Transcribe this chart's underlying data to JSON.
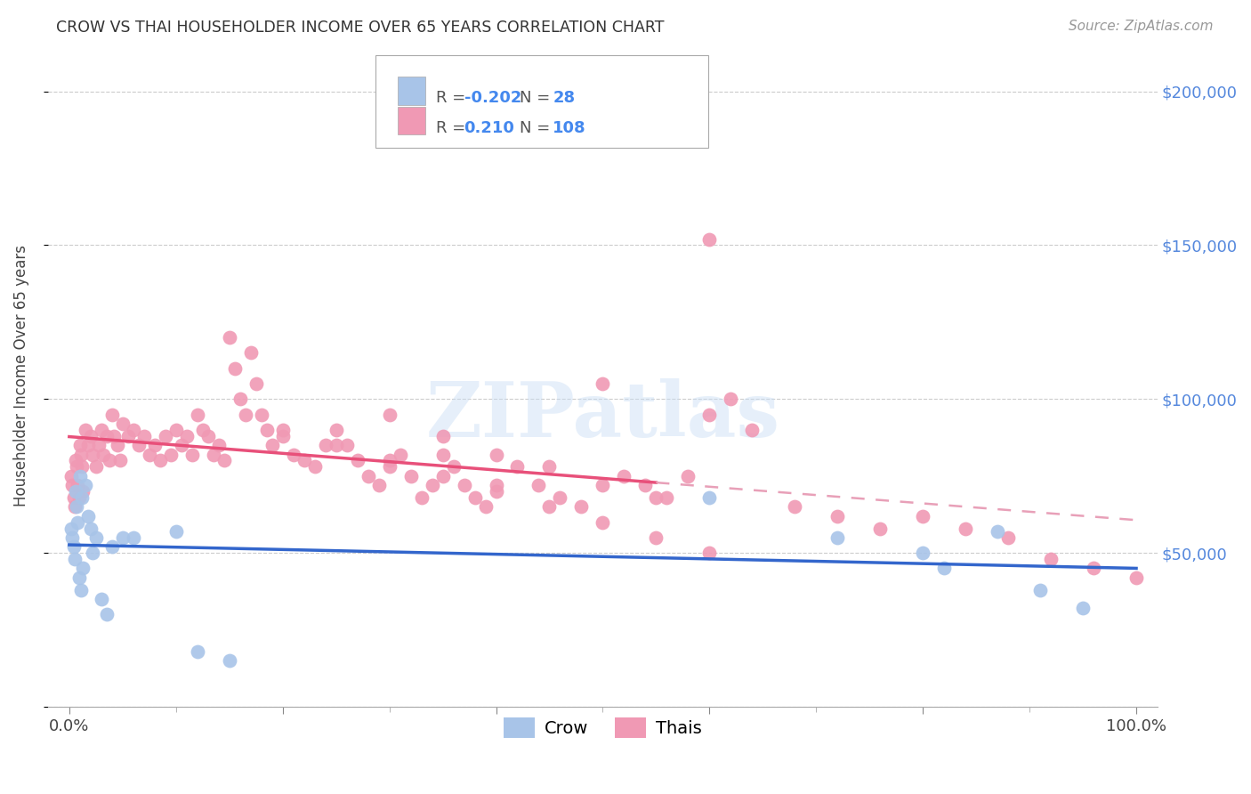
{
  "title": "CROW VS THAI HOUSEHOLDER INCOME OVER 65 YEARS CORRELATION CHART",
  "source": "Source: ZipAtlas.com",
  "ylabel": "Householder Income Over 65 years",
  "watermark": "ZIPatlas",
  "crow_R": -0.202,
  "crow_N": 28,
  "thai_R": 0.21,
  "thai_N": 108,
  "yticks": [
    0,
    50000,
    100000,
    150000,
    200000
  ],
  "ytick_labels": [
    "",
    "$50,000",
    "$100,000",
    "$150,000",
    "$200,000"
  ],
  "xlim": [
    -0.02,
    1.02
  ],
  "ylim": [
    0,
    215000
  ],
  "crow_color": "#a8c4e8",
  "thai_color": "#f099b4",
  "crow_line_color": "#3366cc",
  "thai_line_color": "#e8507a",
  "thai_line_dashed_color": "#e8a0b8",
  "crow_scatter_x": [
    0.002,
    0.003,
    0.004,
    0.005,
    0.006,
    0.007,
    0.008,
    0.009,
    0.01,
    0.011,
    0.012,
    0.013,
    0.015,
    0.018,
    0.02,
    0.022,
    0.025,
    0.03,
    0.035,
    0.04,
    0.05,
    0.06,
    0.1,
    0.12,
    0.15,
    0.6,
    0.72,
    0.8,
    0.82,
    0.87,
    0.91,
    0.95
  ],
  "crow_scatter_y": [
    58000,
    55000,
    52000,
    48000,
    70000,
    65000,
    60000,
    42000,
    75000,
    38000,
    68000,
    45000,
    72000,
    62000,
    58000,
    50000,
    55000,
    35000,
    30000,
    52000,
    55000,
    55000,
    57000,
    18000,
    15000,
    68000,
    55000,
    50000,
    45000,
    57000,
    38000,
    32000
  ],
  "thai_scatter_x": [
    0.002,
    0.003,
    0.004,
    0.005,
    0.006,
    0.007,
    0.008,
    0.009,
    0.01,
    0.011,
    0.012,
    0.013,
    0.015,
    0.018,
    0.02,
    0.022,
    0.025,
    0.028,
    0.03,
    0.032,
    0.035,
    0.038,
    0.04,
    0.042,
    0.045,
    0.048,
    0.05,
    0.055,
    0.06,
    0.065,
    0.07,
    0.075,
    0.08,
    0.085,
    0.09,
    0.095,
    0.1,
    0.105,
    0.11,
    0.115,
    0.12,
    0.125,
    0.13,
    0.135,
    0.14,
    0.145,
    0.15,
    0.155,
    0.16,
    0.165,
    0.17,
    0.175,
    0.18,
    0.185,
    0.19,
    0.2,
    0.21,
    0.22,
    0.23,
    0.24,
    0.25,
    0.26,
    0.27,
    0.28,
    0.29,
    0.3,
    0.31,
    0.32,
    0.33,
    0.34,
    0.35,
    0.36,
    0.37,
    0.38,
    0.39,
    0.4,
    0.42,
    0.44,
    0.46,
    0.48,
    0.5,
    0.52,
    0.54,
    0.56,
    0.6,
    0.64,
    0.68,
    0.72,
    0.76,
    0.8,
    0.84,
    0.88,
    0.92,
    0.96,
    1.0,
    0.6,
    0.62,
    0.58,
    0.3,
    0.35,
    0.4,
    0.45,
    0.5,
    0.55,
    0.2,
    0.25,
    0.3,
    0.35,
    0.4,
    0.45,
    0.5,
    0.55,
    0.6
  ],
  "thai_scatter_y": [
    75000,
    72000,
    68000,
    65000,
    80000,
    78000,
    72000,
    68000,
    85000,
    82000,
    78000,
    70000,
    90000,
    85000,
    88000,
    82000,
    78000,
    85000,
    90000,
    82000,
    88000,
    80000,
    95000,
    88000,
    85000,
    80000,
    92000,
    88000,
    90000,
    85000,
    88000,
    82000,
    85000,
    80000,
    88000,
    82000,
    90000,
    85000,
    88000,
    82000,
    95000,
    90000,
    88000,
    82000,
    85000,
    80000,
    120000,
    110000,
    100000,
    95000,
    115000,
    105000,
    95000,
    90000,
    85000,
    88000,
    82000,
    80000,
    78000,
    85000,
    90000,
    85000,
    80000,
    75000,
    72000,
    78000,
    82000,
    75000,
    68000,
    72000,
    82000,
    78000,
    72000,
    68000,
    65000,
    72000,
    78000,
    72000,
    68000,
    65000,
    105000,
    75000,
    72000,
    68000,
    95000,
    90000,
    65000,
    62000,
    58000,
    62000,
    58000,
    55000,
    48000,
    45000,
    42000,
    152000,
    100000,
    75000,
    95000,
    88000,
    82000,
    78000,
    72000,
    68000,
    90000,
    85000,
    80000,
    75000,
    70000,
    65000,
    60000,
    55000,
    50000
  ]
}
